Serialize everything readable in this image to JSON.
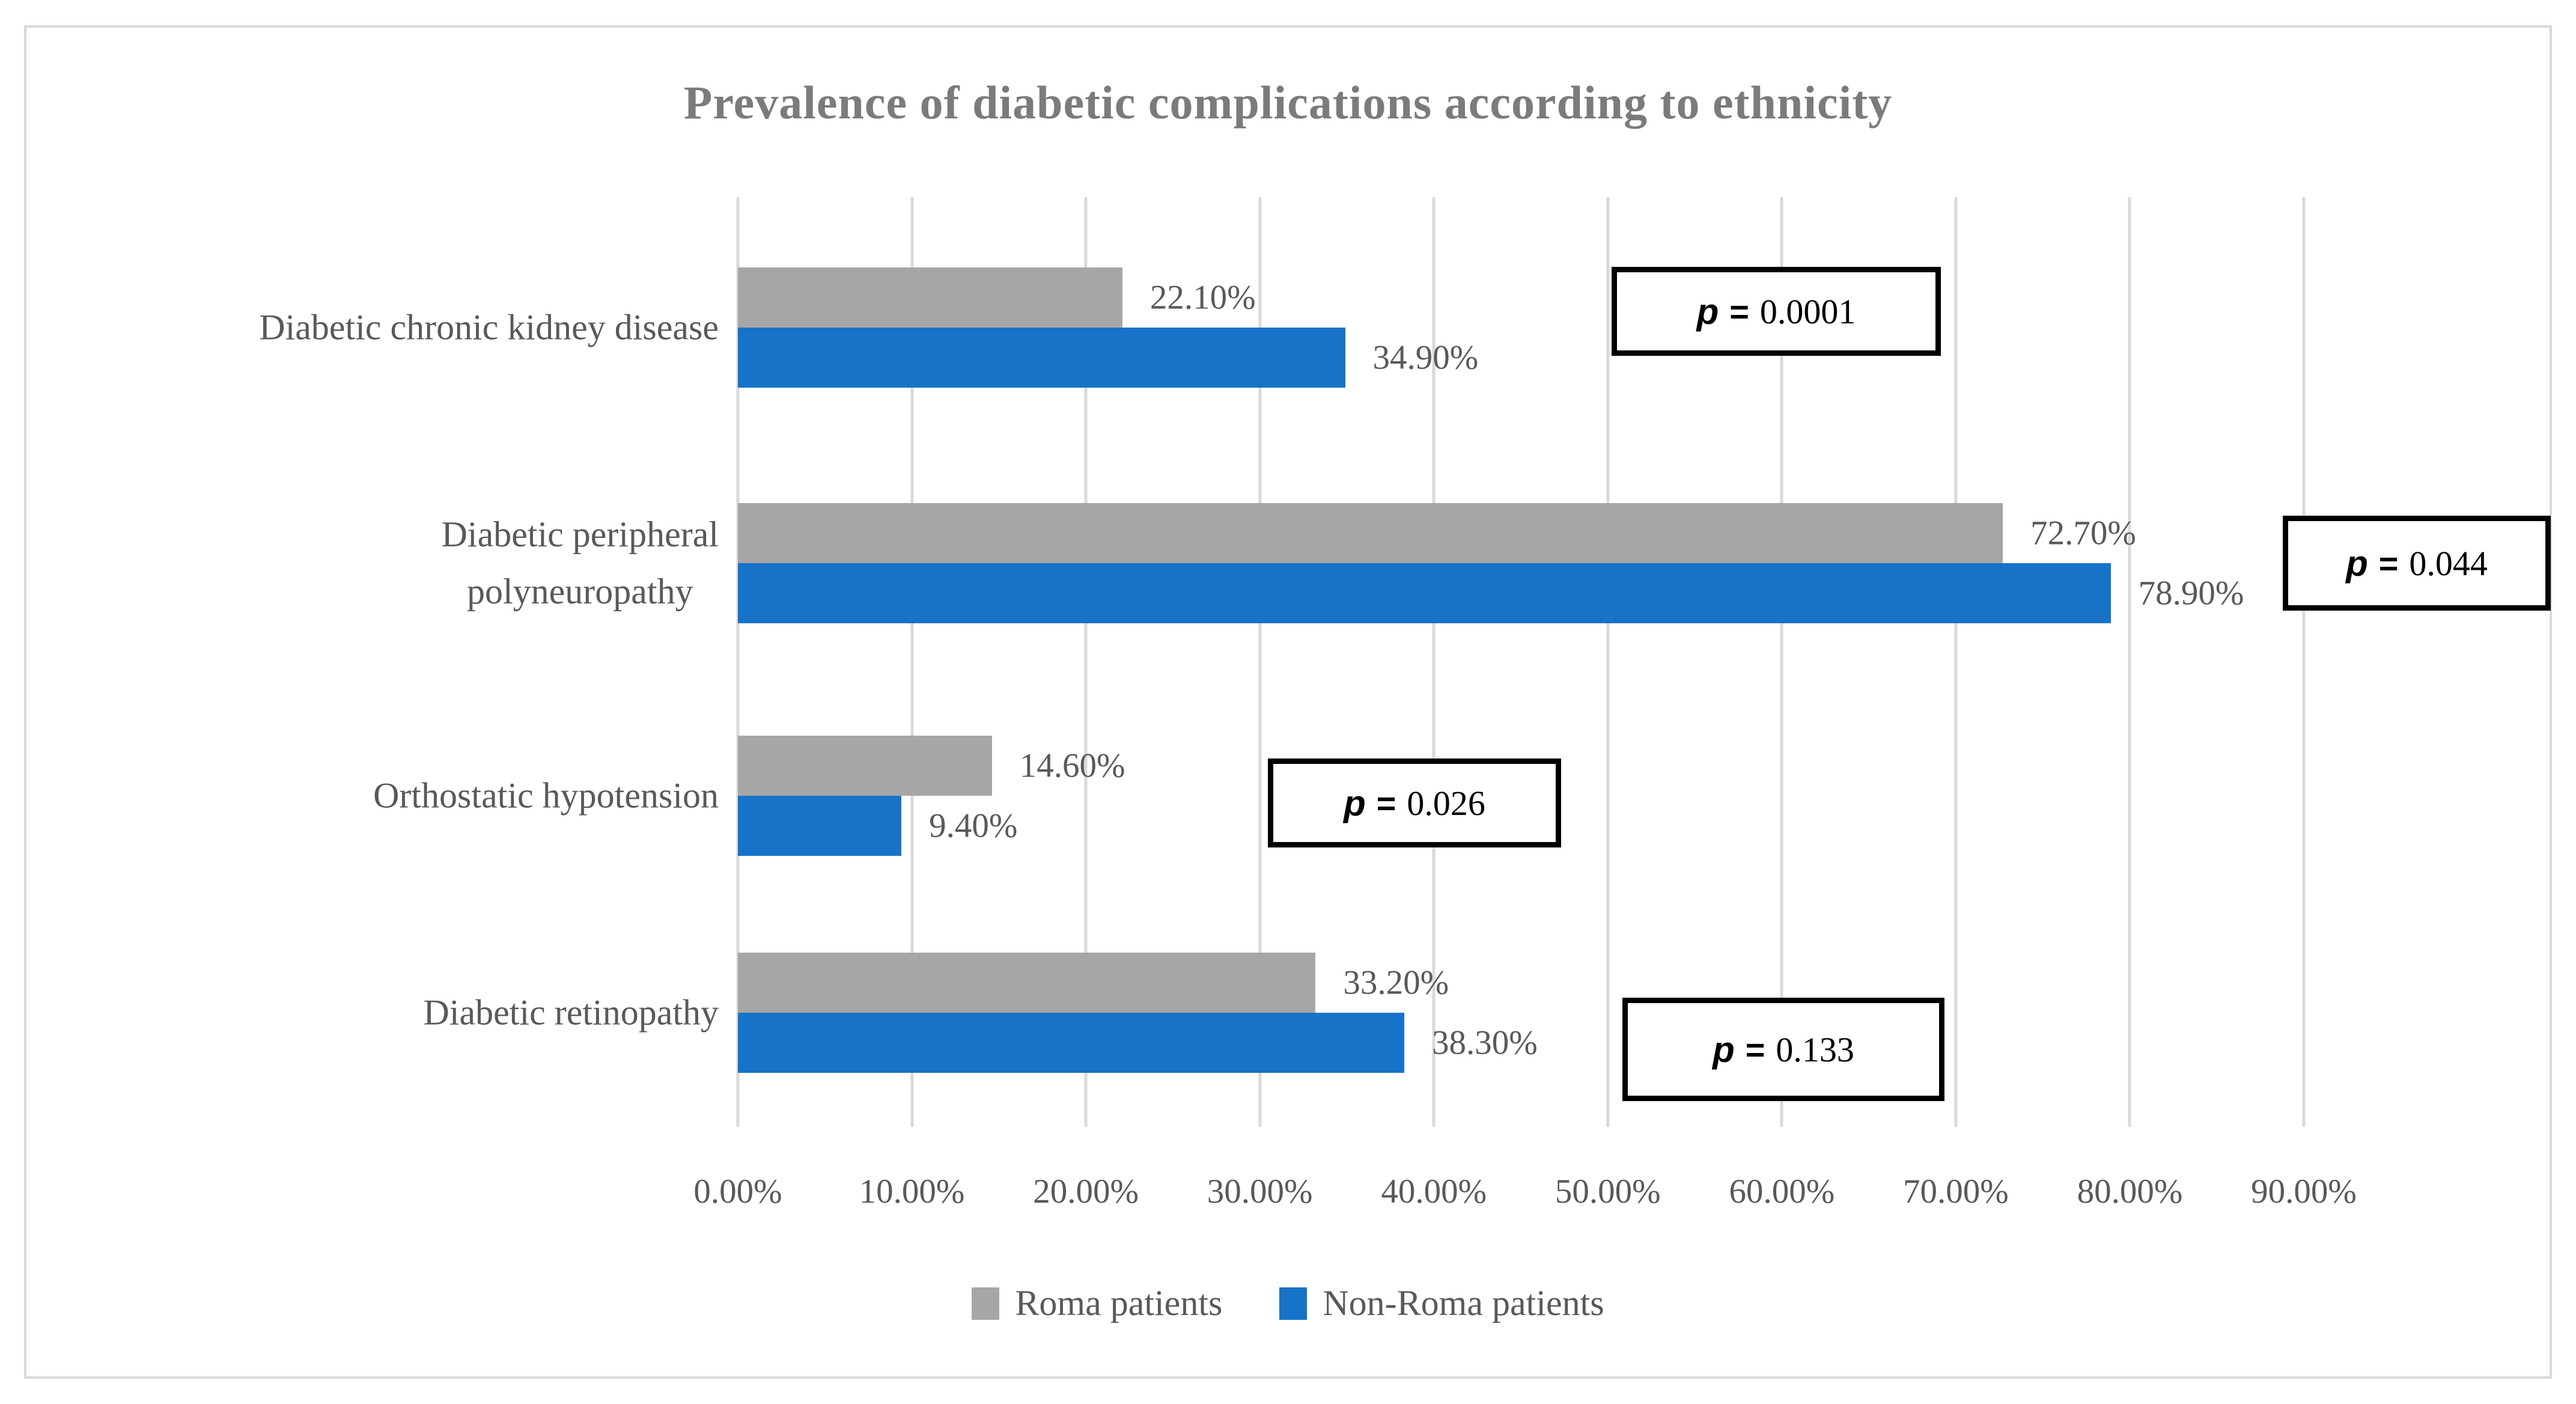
{
  "chart_data": {
    "type": "bar",
    "orientation": "horizontal",
    "title": "Prevalence of diabetic complications according to ethnicity",
    "categories": [
      "Diabetic chronic kidney disease",
      "Diabetic peripheral\npolyneuropathy",
      "Orthostatic hypotension",
      "Diabetic retinopathy"
    ],
    "series": [
      {
        "name": "Roma patients",
        "color": "#a6a6a6",
        "values": [
          22.1,
          72.7,
          14.6,
          33.2
        ],
        "labels": [
          "22.10%",
          "72.70%",
          "14.60%",
          "33.20%"
        ]
      },
      {
        "name": "Non-Roma patients",
        "color": "#1773c7",
        "values": [
          34.9,
          78.9,
          9.4,
          38.3
        ],
        "labels": [
          "34.90%",
          "78.90%",
          "9.40%",
          "38.30%"
        ]
      }
    ],
    "p_values": {
      "symbol": "p",
      "equals": "=",
      "values": [
        "0.0001",
        "0.044",
        "0.026",
        "0.133"
      ]
    },
    "x_axis": {
      "ticks": [
        "0.00%",
        "10.00%",
        "20.00%",
        "30.00%",
        "40.00%",
        "50.00%",
        "60.00%",
        "70.00%",
        "80.00%",
        "90.00%"
      ],
      "min": 0,
      "max": 90,
      "grid": true
    },
    "legend_position": "bottom",
    "colors": {
      "gridline": "#d9d9d9",
      "frame_border": "#d9d9d9",
      "label_text": "#595959",
      "title_text": "#7b7b7b",
      "p_box_border": "#000000"
    }
  }
}
